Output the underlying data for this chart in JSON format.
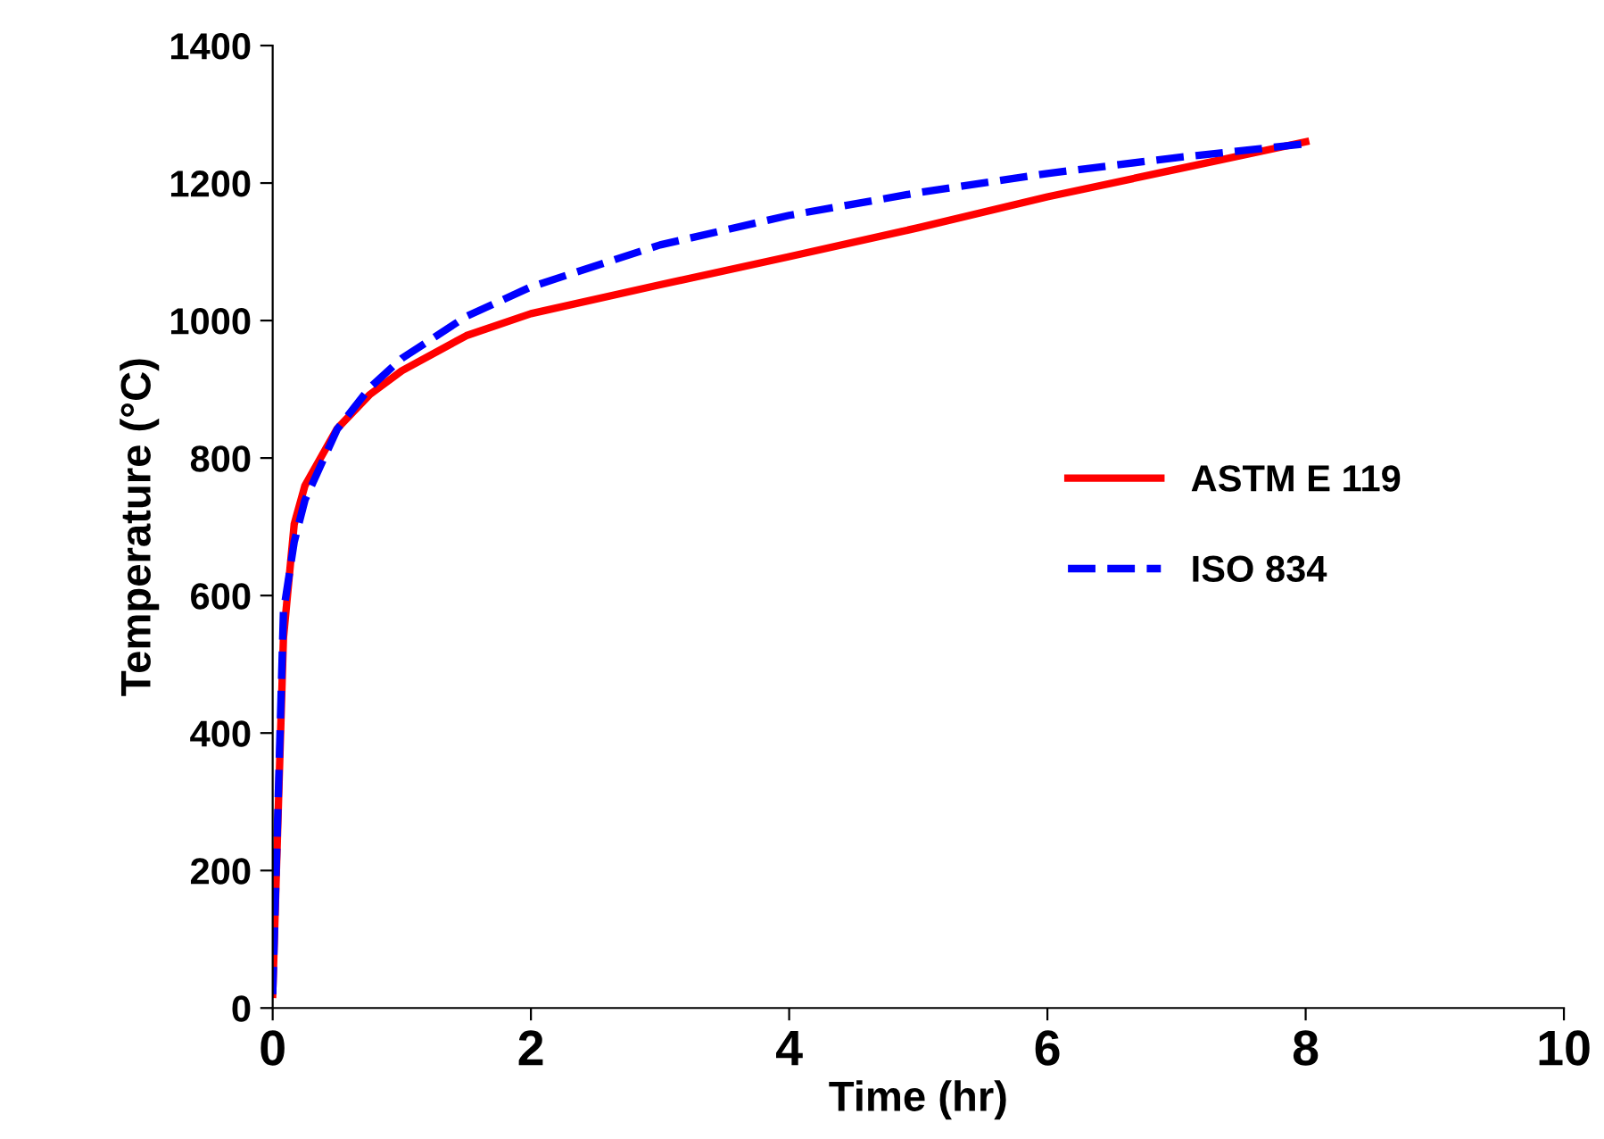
{
  "chart_data": {
    "type": "line",
    "xlabel": "Time (hr)",
    "ylabel": "Temperature (°C)",
    "xlim": [
      0,
      10
    ],
    "xticks": [
      0,
      2,
      4,
      6,
      8,
      10
    ],
    "ylim": [
      0,
      1400
    ],
    "yticks": [
      0,
      200,
      400,
      600,
      800,
      1000,
      1200,
      1400
    ],
    "grid": false,
    "legend": "center right",
    "marker": "none",
    "series": [
      {
        "name": "ASTM E 119",
        "color": "#ff0000",
        "line_style": "solid",
        "x": [
          0,
          0.0833,
          0.1667,
          0.25,
          0.5,
          0.75,
          1,
          1.5,
          2,
          3,
          4,
          5,
          6,
          7,
          8
        ],
        "values": [
          20,
          538,
          704,
          760,
          843,
          892,
          927,
          978,
          1010,
          1052,
          1093,
          1135,
          1180,
          1220,
          1260
        ]
      },
      {
        "name": "ISO 834",
        "color": "#0000ff",
        "line_style": "dashed",
        "x": [
          0,
          0.0833,
          0.1667,
          0.25,
          0.5,
          0.75,
          1,
          1.5,
          2,
          3,
          4,
          5,
          6,
          7,
          8
        ],
        "values": [
          20,
          576,
          678,
          739,
          842,
          902,
          945,
          1006,
          1049,
          1110,
          1153,
          1186,
          1214,
          1237,
          1257
        ]
      }
    ]
  }
}
